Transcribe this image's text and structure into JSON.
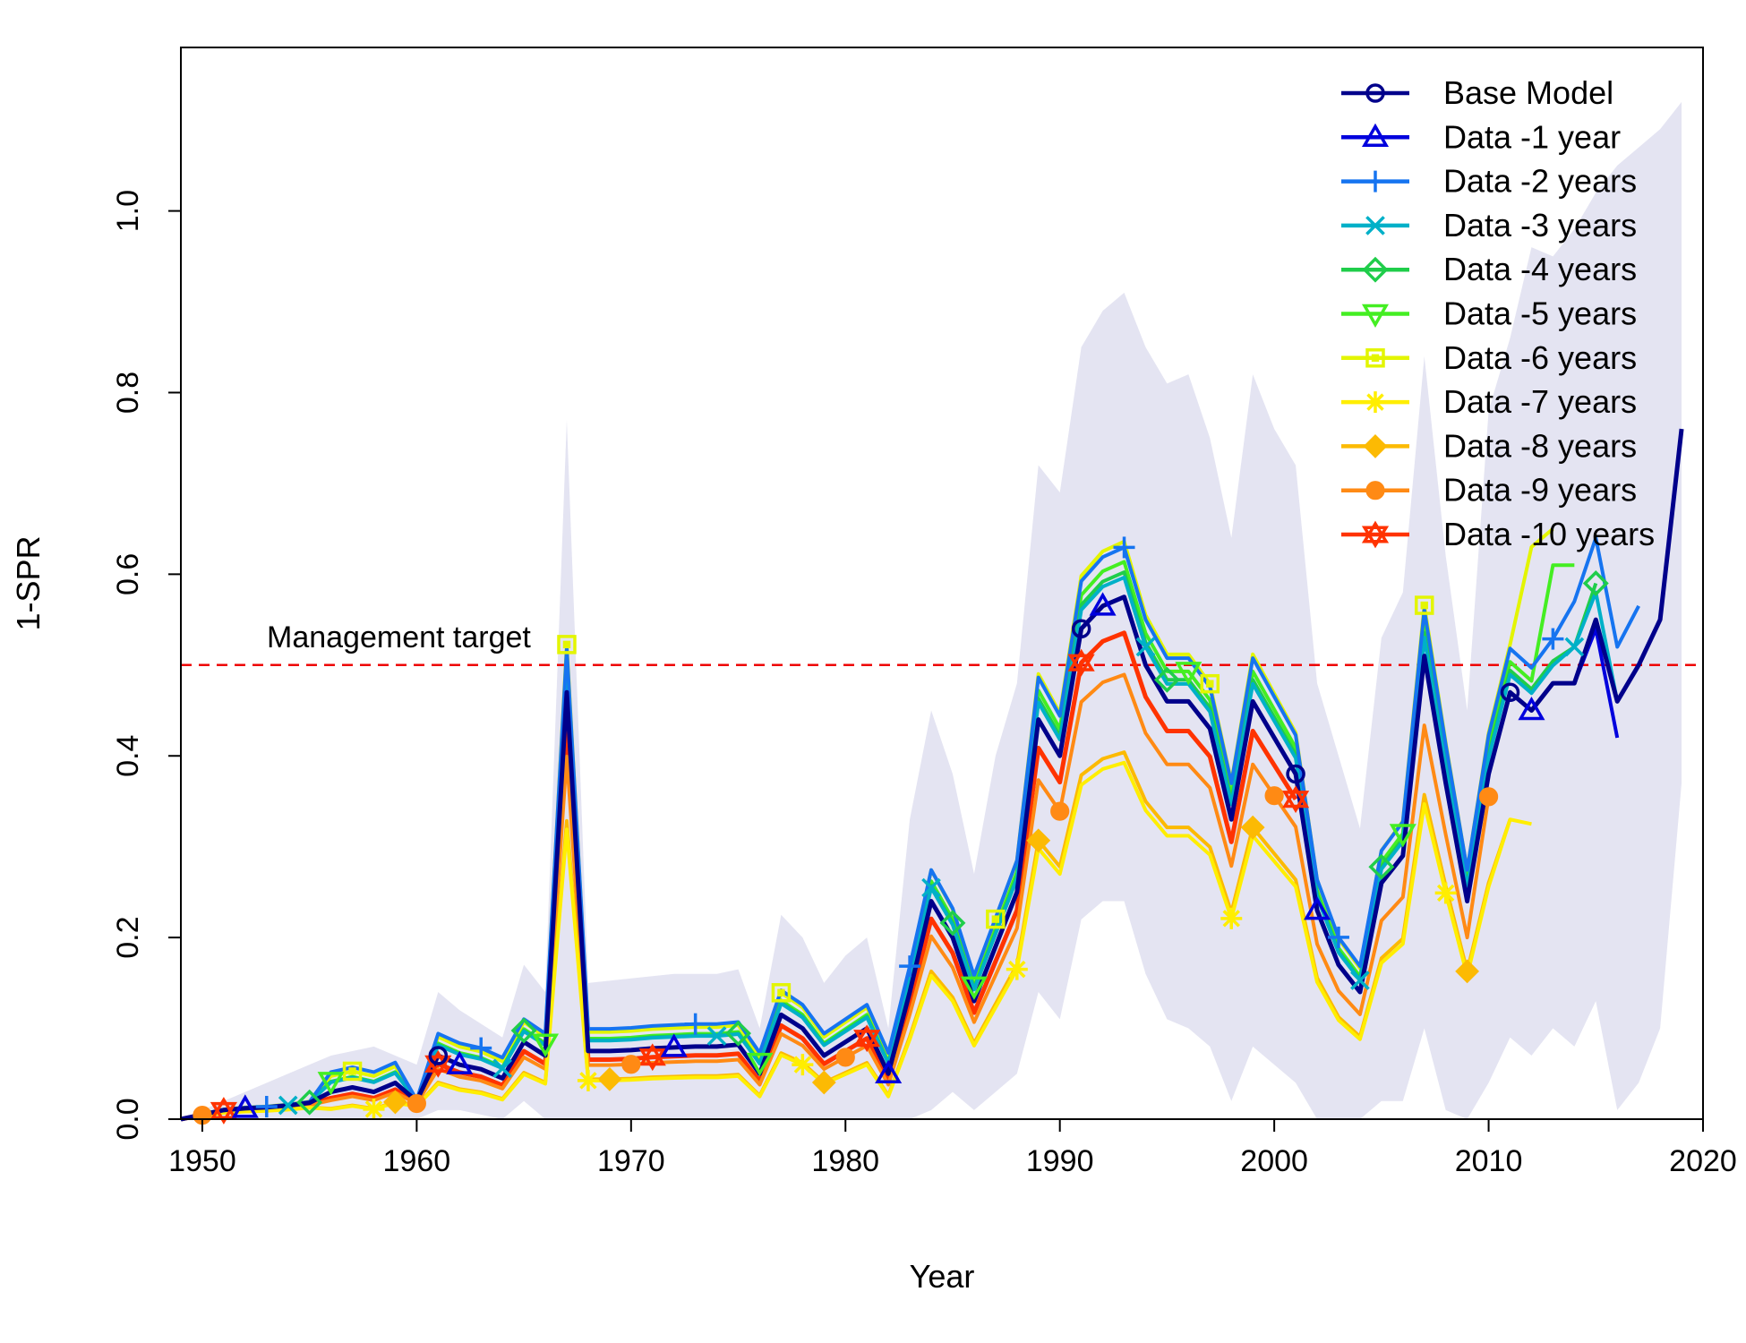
{
  "chart_data": {
    "type": "line",
    "title": "",
    "xlabel": "Year",
    "ylabel": "1-SPR",
    "xlim": [
      1949,
      2020
    ],
    "ylim": [
      0,
      1.18
    ],
    "x_ticks": [
      1950,
      1960,
      1970,
      1980,
      1990,
      2000,
      2010,
      2020
    ],
    "y_ticks": [
      0.0,
      0.2,
      0.4,
      0.6,
      0.8,
      1.0
    ],
    "y_tick_labels": [
      "0.0",
      "0.2",
      "0.4",
      "0.6",
      "0.8",
      "1.0"
    ],
    "grid": false,
    "legend_position": "top-right",
    "reference_line": {
      "y": 0.5,
      "label": "Management target",
      "color": "#ee0000",
      "style": "dashed"
    },
    "interval_band": {
      "color": "#e4e4f2",
      "x": [
        1949,
        1952,
        1954,
        1956,
        1958,
        1960,
        1961,
        1962,
        1964,
        1965,
        1966,
        1967,
        1968,
        1970,
        1972,
        1974,
        1975,
        1976,
        1977,
        1978,
        1979,
        1980,
        1981,
        1982,
        1983,
        1984,
        1985,
        1986,
        1987,
        1988,
        1989,
        1990,
        1991,
        1992,
        1993,
        1994,
        1995,
        1996,
        1997,
        1998,
        1999,
        2000,
        2001,
        2002,
        2003,
        2004,
        2005,
        2006,
        2007,
        2008,
        2009,
        2010,
        2011,
        2012,
        2013,
        2014,
        2015,
        2016,
        2017,
        2018,
        2019
      ],
      "upper": [
        0.0,
        0.03,
        0.05,
        0.07,
        0.08,
        0.06,
        0.14,
        0.12,
        0.09,
        0.17,
        0.14,
        0.77,
        0.15,
        0.155,
        0.16,
        0.16,
        0.165,
        0.1,
        0.225,
        0.2,
        0.15,
        0.18,
        0.2,
        0.1,
        0.33,
        0.45,
        0.38,
        0.27,
        0.4,
        0.48,
        0.72,
        0.69,
        0.85,
        0.89,
        0.91,
        0.85,
        0.81,
        0.82,
        0.75,
        0.64,
        0.82,
        0.76,
        0.72,
        0.48,
        0.4,
        0.32,
        0.53,
        0.58,
        0.84,
        0.62,
        0.45,
        0.78,
        0.86,
        0.96,
        0.95,
        0.98,
        1.02,
        1.05,
        1.07,
        1.09,
        1.12
      ],
      "lower": [
        0.0,
        0.0,
        0.0,
        0.0,
        0.0,
        0.0,
        0.01,
        0.01,
        0.0,
        0.02,
        0.0,
        0.0,
        0.0,
        0.0,
        0.0,
        0.0,
        0.0,
        0.0,
        0.0,
        0.0,
        0.0,
        0.0,
        0.0,
        0.0,
        0.0,
        0.01,
        0.03,
        0.01,
        0.03,
        0.05,
        0.14,
        0.11,
        0.22,
        0.24,
        0.24,
        0.16,
        0.11,
        0.1,
        0.08,
        0.02,
        0.08,
        0.06,
        0.04,
        0.0,
        0.0,
        0.0,
        0.02,
        0.02,
        0.1,
        0.01,
        0.0,
        0.04,
        0.09,
        0.07,
        0.1,
        0.08,
        0.13,
        0.01,
        0.04,
        0.1,
        0.37
      ]
    },
    "series": [
      {
        "name": "Base Model",
        "color": "#00008b",
        "marker": "circle",
        "marker_years": [
          1961,
          1991,
          2001,
          2011
        ],
        "marker_offset": 0.0,
        "thick": true,
        "start": 1949,
        "end": 2019,
        "scale": 1.0,
        "tail": [
          [
            2016,
            0.46
          ],
          [
            2017,
            0.5
          ],
          [
            2018,
            0.55
          ],
          [
            2019,
            0.76
          ]
        ]
      },
      {
        "name": "Data -1 year",
        "color": "#0000dd",
        "marker": "triangle",
        "marker_years": [
          1952,
          1962,
          1972,
          1982,
          1992,
          2002,
          2012
        ],
        "marker_offset": 0.0,
        "thick": false,
        "start": 1949,
        "end": 2016,
        "scale": 1.0,
        "tail": [
          [
            2015,
            0.54
          ],
          [
            2016,
            0.42
          ]
        ]
      },
      {
        "name": "Data -2 years",
        "color": "#1674f0",
        "marker": "plus",
        "marker_years": [
          1953,
          1963,
          1973,
          1983,
          1993,
          2003,
          2013
        ],
        "marker_offset": 0.02,
        "thick": false,
        "start": 1949,
        "end": 2017,
        "scale": 1.06,
        "tail": [
          [
            2014,
            0.57
          ],
          [
            2015,
            0.64
          ],
          [
            2016,
            0.52
          ],
          [
            2017,
            0.565
          ]
        ]
      },
      {
        "name": "Data -3 years",
        "color": "#00b0c8",
        "marker": "x",
        "marker_years": [
          1954,
          1964,
          1974,
          1984,
          1994,
          2004,
          2014
        ],
        "marker_offset": 0.01,
        "thick": false,
        "start": 1949,
        "end": 2016,
        "scale": 1.02,
        "tail": [
          [
            2014,
            0.52
          ],
          [
            2015,
            0.58
          ],
          [
            2016,
            0.46
          ]
        ]
      },
      {
        "name": "Data -4 years",
        "color": "#1fcd4a",
        "marker": "diamond",
        "marker_years": [
          1955,
          1965,
          1975,
          1985,
          1995,
          2005,
          2015
        ],
        "marker_offset": 0.01,
        "thick": false,
        "start": 1949,
        "end": 2015,
        "scale": 1.03,
        "tail": [
          [
            2014,
            0.52
          ],
          [
            2015,
            0.59
          ]
        ]
      },
      {
        "name": "Data -5 years",
        "color": "#44ee22",
        "marker": "triangle-down",
        "marker_years": [
          1956,
          1966,
          1976,
          1986,
          1996,
          2006
        ],
        "marker_offset": 0.01,
        "thick": false,
        "start": 1949,
        "end": 2014,
        "scale": 1.05,
        "tail": [
          [
            2013,
            0.61
          ],
          [
            2014,
            0.61
          ]
        ]
      },
      {
        "name": "Data -6 years",
        "color": "#e3f500",
        "marker": "square",
        "marker_years": [
          1957,
          1967,
          1977,
          1987,
          1997,
          2007
        ],
        "marker_offset": 0.015,
        "thick": false,
        "start": 1949,
        "end": 2013,
        "scale": 1.08,
        "tail": [
          [
            2012,
            0.63
          ],
          [
            2013,
            0.65
          ]
        ]
      },
      {
        "name": "Data -7 years",
        "color": "#ffee00",
        "marker": "asterisk",
        "marker_years": [
          1958,
          1968,
          1978,
          1988,
          1998,
          2008
        ],
        "marker_offset": -0.01,
        "thick": false,
        "start": 1949,
        "end": 2012,
        "scale": 0.7,
        "tail": [
          [
            2011,
            0.33
          ],
          [
            2012,
            0.325
          ]
        ]
      },
      {
        "name": "Data -8 years",
        "color": "#fcba03",
        "marker": "diamond-filled",
        "marker_years": [
          1959,
          1969,
          1979,
          1989,
          1999,
          2009
        ],
        "marker_offset": -0.01,
        "thick": false,
        "start": 1949,
        "end": 2011,
        "scale": 0.72,
        "tail": [
          [
            2010,
            0.26
          ],
          [
            2011,
            0.33
          ]
        ]
      },
      {
        "name": "Data -9 years",
        "color": "#ff8a14",
        "marker": "circle-filled",
        "marker_years": [
          1950,
          1960,
          1970,
          1980,
          1990,
          2000,
          2010
        ],
        "marker_offset": -0.005,
        "thick": false,
        "start": 1949,
        "end": 2010,
        "scale": 0.86,
        "tail": [
          [
            2009,
            0.2
          ],
          [
            2010,
            0.355
          ]
        ]
      },
      {
        "name": "Data -10 years",
        "color": "#ff3300",
        "marker": "star",
        "marker_years": [
          1951,
          1961,
          1971,
          1981,
          1991,
          2001
        ],
        "marker_offset": -0.005,
        "thick": true,
        "start": 1949,
        "end": 2001,
        "scale": 0.94,
        "tail": []
      }
    ],
    "base_curve": {
      "x": [
        1949,
        1950,
        1951,
        1952,
        1953,
        1954,
        1955,
        1956,
        1957,
        1958,
        1959,
        1960,
        1961,
        1962,
        1963,
        1964,
        1965,
        1966,
        1967,
        1968,
        1969,
        1970,
        1971,
        1972,
        1973,
        1974,
        1975,
        1976,
        1977,
        1978,
        1979,
        1980,
        1981,
        1982,
        1983,
        1984,
        1985,
        1986,
        1987,
        1988,
        1989,
        1990,
        1991,
        1992,
        1993,
        1994,
        1995,
        1996,
        1997,
        1998,
        1999,
        2000,
        2001,
        2002,
        2003,
        2004,
        2005,
        2006,
        2007,
        2008,
        2009,
        2010,
        2011,
        2012,
        2013,
        2014,
        2015
      ],
      "y": [
        0.0,
        0.005,
        0.01,
        0.012,
        0.013,
        0.015,
        0.018,
        0.03,
        0.035,
        0.03,
        0.04,
        0.02,
        0.07,
        0.06,
        0.055,
        0.045,
        0.085,
        0.07,
        0.47,
        0.075,
        0.075,
        0.076,
        0.078,
        0.079,
        0.08,
        0.08,
        0.082,
        0.05,
        0.115,
        0.1,
        0.07,
        0.085,
        0.1,
        0.05,
        0.14,
        0.24,
        0.2,
        0.13,
        0.19,
        0.25,
        0.44,
        0.4,
        0.54,
        0.565,
        0.575,
        0.5,
        0.46,
        0.46,
        0.43,
        0.33,
        0.46,
        0.42,
        0.38,
        0.23,
        0.17,
        0.14,
        0.26,
        0.29,
        0.51,
        0.37,
        0.24,
        0.38,
        0.47,
        0.45,
        0.48,
        0.48,
        0.55
      ]
    }
  }
}
